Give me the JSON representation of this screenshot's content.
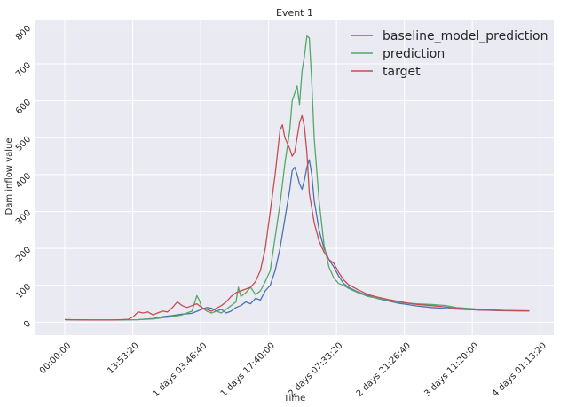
{
  "chart_data": {
    "type": "line",
    "title": "Event 1",
    "xlabel": "Time",
    "ylabel": "Dam inflow value",
    "x_unit_seconds": 3600,
    "xlim": [
      -6,
      100
    ],
    "ylim": [
      -35,
      820
    ],
    "xticks": [
      {
        "value": 0,
        "label": "00:00:00"
      },
      {
        "value": 13.889,
        "label": "13:53:20"
      },
      {
        "value": 27.778,
        "label": "1 days 03:46:40"
      },
      {
        "value": 41.667,
        "label": "1 days 17:40:00"
      },
      {
        "value": 55.556,
        "label": "2 days 07:33:20"
      },
      {
        "value": 69.444,
        "label": "2 days 21:26:40"
      },
      {
        "value": 83.333,
        "label": "3 days 11:20:00"
      },
      {
        "value": 97.222,
        "label": "4 days 01:13:20"
      }
    ],
    "yticks": [
      0,
      100,
      200,
      300,
      400,
      500,
      600,
      700,
      800
    ],
    "grid": true,
    "legend_position": "top-right",
    "series": [
      {
        "name": "baseline_model_prediction",
        "color": "#4c72b0",
        "points": [
          [
            0,
            7
          ],
          [
            5,
            6
          ],
          [
            10,
            6
          ],
          [
            15,
            7
          ],
          [
            18,
            10
          ],
          [
            20,
            15
          ],
          [
            22,
            18
          ],
          [
            24,
            22
          ],
          [
            26,
            24
          ],
          [
            28,
            35
          ],
          [
            29,
            40
          ],
          [
            30,
            38
          ],
          [
            31,
            30
          ],
          [
            32,
            35
          ],
          [
            33,
            25
          ],
          [
            34,
            30
          ],
          [
            35,
            40
          ],
          [
            36,
            45
          ],
          [
            37,
            55
          ],
          [
            38,
            50
          ],
          [
            39,
            65
          ],
          [
            40,
            60
          ],
          [
            41,
            85
          ],
          [
            42,
            100
          ],
          [
            43,
            140
          ],
          [
            44,
            200
          ],
          [
            45,
            280
          ],
          [
            46,
            360
          ],
          [
            46.5,
            410
          ],
          [
            47,
            420
          ],
          [
            47.5,
            400
          ],
          [
            48,
            375
          ],
          [
            48.5,
            360
          ],
          [
            49,
            385
          ],
          [
            49.5,
            420
          ],
          [
            50,
            440
          ],
          [
            50.5,
            400
          ],
          [
            51,
            330
          ],
          [
            52,
            250
          ],
          [
            53,
            200
          ],
          [
            54,
            170
          ],
          [
            55,
            150
          ],
          [
            56,
            125
          ],
          [
            57,
            105
          ],
          [
            58,
            95
          ],
          [
            60,
            82
          ],
          [
            62,
            72
          ],
          [
            64,
            64
          ],
          [
            66,
            58
          ],
          [
            68,
            52
          ],
          [
            70,
            48
          ],
          [
            72,
            44
          ],
          [
            75,
            40
          ],
          [
            78,
            37
          ],
          [
            81,
            35
          ],
          [
            85,
            33
          ],
          [
            90,
            31
          ],
          [
            95,
            30
          ]
        ]
      },
      {
        "name": "prediction",
        "color": "#55a868",
        "points": [
          [
            0,
            7
          ],
          [
            5,
            6
          ],
          [
            10,
            6
          ],
          [
            15,
            7
          ],
          [
            18,
            9
          ],
          [
            20,
            12
          ],
          [
            22,
            15
          ],
          [
            24,
            20
          ],
          [
            25,
            25
          ],
          [
            26,
            30
          ],
          [
            27,
            72
          ],
          [
            27.5,
            60
          ],
          [
            28,
            40
          ],
          [
            29,
            30
          ],
          [
            30,
            25
          ],
          [
            31,
            30
          ],
          [
            32,
            25
          ],
          [
            33,
            35
          ],
          [
            34,
            45
          ],
          [
            35,
            55
          ],
          [
            35.5,
            95
          ],
          [
            36,
            70
          ],
          [
            37,
            80
          ],
          [
            38,
            95
          ],
          [
            39,
            75
          ],
          [
            40,
            85
          ],
          [
            41,
            110
          ],
          [
            42,
            140
          ],
          [
            43,
            230
          ],
          [
            44,
            320
          ],
          [
            45,
            430
          ],
          [
            46,
            520
          ],
          [
            46.5,
            600
          ],
          [
            47,
            620
          ],
          [
            47.5,
            640
          ],
          [
            48,
            590
          ],
          [
            48.5,
            680
          ],
          [
            49,
            720
          ],
          [
            49.5,
            775
          ],
          [
            50,
            770
          ],
          [
            50.5,
            650
          ],
          [
            51,
            500
          ],
          [
            52,
            330
          ],
          [
            53,
            210
          ],
          [
            54,
            150
          ],
          [
            55,
            120
          ],
          [
            56,
            105
          ],
          [
            57,
            100
          ],
          [
            58,
            92
          ],
          [
            60,
            80
          ],
          [
            62,
            70
          ],
          [
            64,
            65
          ],
          [
            66,
            60
          ],
          [
            68,
            55
          ],
          [
            70,
            52
          ],
          [
            72,
            50
          ],
          [
            75,
            48
          ],
          [
            78,
            45
          ],
          [
            80,
            40
          ],
          [
            83,
            37
          ],
          [
            85,
            35
          ],
          [
            90,
            32
          ],
          [
            95,
            30
          ]
        ]
      },
      {
        "name": "target",
        "color": "#c44e52",
        "points": [
          [
            0,
            7
          ],
          [
            5,
            6
          ],
          [
            10,
            6
          ],
          [
            13,
            8
          ],
          [
            14,
            15
          ],
          [
            15,
            28
          ],
          [
            16,
            25
          ],
          [
            17,
            28
          ],
          [
            18,
            20
          ],
          [
            19,
            25
          ],
          [
            20,
            30
          ],
          [
            21,
            28
          ],
          [
            22,
            40
          ],
          [
            23,
            55
          ],
          [
            24,
            45
          ],
          [
            25,
            40
          ],
          [
            26,
            45
          ],
          [
            27,
            50
          ],
          [
            28,
            40
          ],
          [
            29,
            35
          ],
          [
            30,
            30
          ],
          [
            31,
            38
          ],
          [
            32,
            45
          ],
          [
            33,
            55
          ],
          [
            34,
            70
          ],
          [
            35,
            80
          ],
          [
            36,
            85
          ],
          [
            37,
            90
          ],
          [
            38,
            95
          ],
          [
            39,
            110
          ],
          [
            40,
            140
          ],
          [
            41,
            200
          ],
          [
            42,
            300
          ],
          [
            43,
            400
          ],
          [
            44,
            520
          ],
          [
            44.5,
            535
          ],
          [
            45,
            500
          ],
          [
            46,
            470
          ],
          [
            46.5,
            450
          ],
          [
            47,
            460
          ],
          [
            47.5,
            500
          ],
          [
            48,
            540
          ],
          [
            48.5,
            560
          ],
          [
            49,
            530
          ],
          [
            49.5,
            460
          ],
          [
            50,
            350
          ],
          [
            51,
            270
          ],
          [
            52,
            220
          ],
          [
            53,
            190
          ],
          [
            54,
            170
          ],
          [
            55,
            160
          ],
          [
            56,
            135
          ],
          [
            57,
            115
          ],
          [
            58,
            102
          ],
          [
            60,
            88
          ],
          [
            62,
            75
          ],
          [
            64,
            68
          ],
          [
            66,
            62
          ],
          [
            68,
            57
          ],
          [
            70,
            52
          ],
          [
            72,
            48
          ],
          [
            75,
            45
          ],
          [
            78,
            41
          ],
          [
            80,
            38
          ],
          [
            83,
            35
          ],
          [
            85,
            33
          ],
          [
            90,
            32
          ],
          [
            95,
            31
          ]
        ]
      }
    ]
  }
}
